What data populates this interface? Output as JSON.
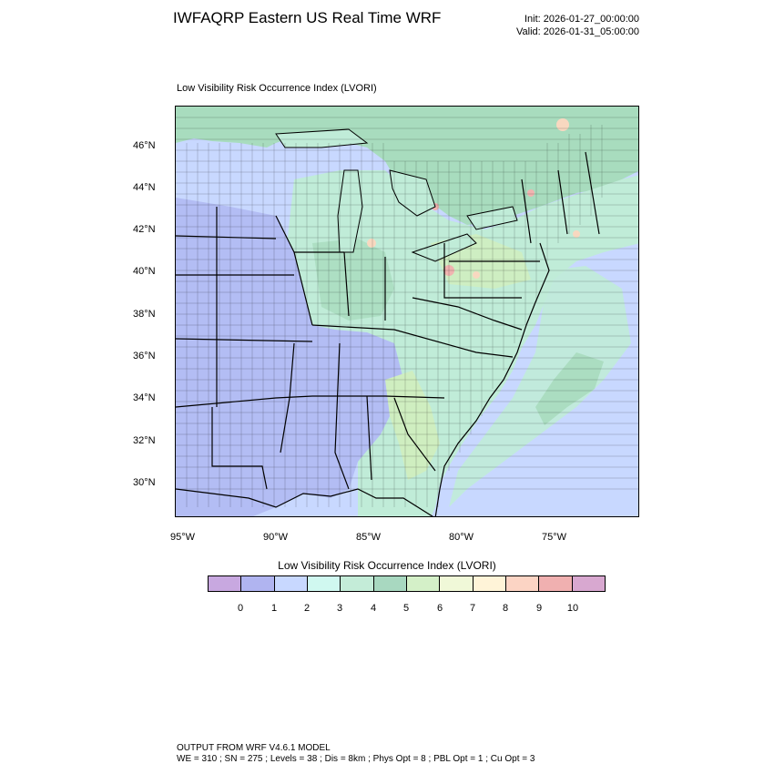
{
  "header": {
    "title": "IWFAQRP Eastern US Real Time WRF",
    "init_line": "Init: 2026-01-27_00:00:00",
    "valid_line": "Valid: 2026-01-31_05:00:00"
  },
  "map": {
    "subtitle": "Low Visibility Risk Occurrence Index   (LVORI)",
    "lat_labels": [
      "46°N",
      "44°N",
      "42°N",
      "40°N",
      "38°N",
      "36°N",
      "34°N",
      "32°N",
      "30°N"
    ],
    "lon_labels": [
      "95°W",
      "90°W",
      "85°W",
      "80°W",
      "75°W"
    ],
    "colors": {
      "ocean": "#c8d8ff",
      "level_1": "#b3bdf4",
      "level_2": "#c8d8ff",
      "level_4": "#c0ecd8",
      "level_5": "#a8dcbe",
      "level_6": "#cfeec0",
      "level_8": "#f8d8c0",
      "level_9": "#f0b4b0"
    }
  },
  "colorbar": {
    "title": "Low Visibility Risk Occurrence Index  (LVORI)",
    "colors": [
      "#c8a8e0",
      "#b0b4f0",
      "#c8d8ff",
      "#d0f8f0",
      "#c4ecd8",
      "#a8d8c0",
      "#d4f0c8",
      "#f0f8d8",
      "#fff4d8",
      "#fcd4c4",
      "#f0b0b0",
      "#d8a8d0"
    ],
    "ticks": [
      "0",
      "1",
      "2",
      "3",
      "4",
      "5",
      "6",
      "7",
      "8",
      "9",
      "10"
    ]
  },
  "footer": {
    "line1": "OUTPUT FROM WRF V4.6.1 MODEL",
    "line2": "WE = 310 ; SN = 275 ; Levels = 38 ; Dis = 8km ; Phys Opt = 8 ; PBL Opt = 1 ; Cu Opt = 3"
  }
}
